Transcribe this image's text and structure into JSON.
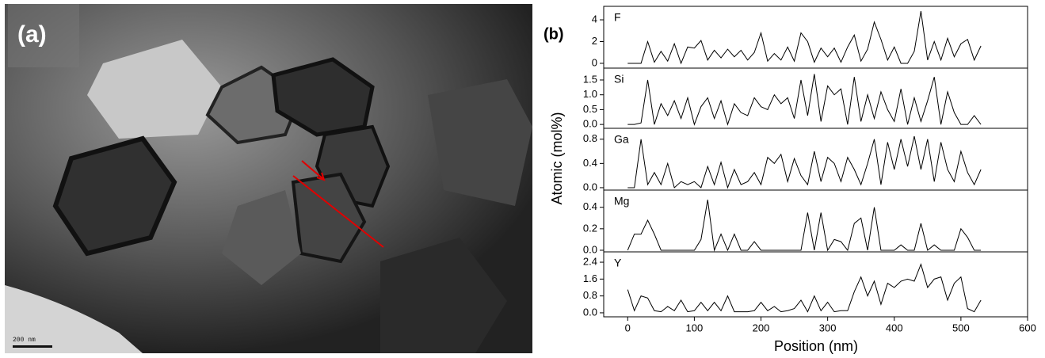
{
  "image": {
    "label": "(a)",
    "scale_bar": "200 nm"
  },
  "chart_data": {
    "type": "line",
    "panel_label": "(b)",
    "x_label": "Position (nm)",
    "y_label": "Atomic (mol%)",
    "color": "#000000",
    "xlim": [
      -36,
      600
    ],
    "xticks": [
      0,
      100,
      200,
      300,
      400,
      500,
      600
    ],
    "x": [
      0,
      10,
      20,
      30,
      40,
      50,
      60,
      70,
      80,
      90,
      100,
      110,
      120,
      130,
      140,
      150,
      160,
      170,
      180,
      190,
      200,
      210,
      220,
      230,
      240,
      250,
      260,
      270,
      280,
      290,
      300,
      310,
      320,
      330,
      340,
      350,
      360,
      370,
      380,
      390,
      400,
      410,
      420,
      430,
      440,
      450,
      460,
      470,
      480,
      490,
      500,
      510,
      520,
      530
    ],
    "series": [
      {
        "name": "F",
        "ylim": [
          -0.44,
          5.24
        ],
        "yticks": [
          0,
          2,
          4
        ],
        "values": [
          0,
          0,
          0,
          2.0,
          0.1,
          1.1,
          0.2,
          1.8,
          0,
          1.5,
          1.4,
          2.1,
          0.3,
          1.2,
          0.5,
          1.3,
          0.6,
          1.2,
          0.3,
          1.0,
          2.8,
          0.2,
          0.9,
          0.3,
          1.5,
          0.2,
          2.8,
          2.0,
          0.1,
          1.4,
          0.6,
          1.4,
          0.1,
          1.5,
          2.6,
          0.2,
          1.3,
          3.8,
          2.2,
          0.3,
          1.5,
          0,
          0,
          1.1,
          4.8,
          0.3,
          2.0,
          0.3,
          2.3,
          0.6,
          1.8,
          2.2,
          0.3,
          1.6
        ]
      },
      {
        "name": "Si",
        "ylim": [
          -0.13,
          1.9
        ],
        "yticks": [
          {
            "value": 0,
            "label": "0.0"
          },
          {
            "value": 0.5,
            "label": "0.5"
          },
          {
            "value": 1,
            "label": "1.0"
          },
          {
            "value": 1.5,
            "label": "1.5"
          }
        ],
        "values": [
          0,
          0,
          0.05,
          1.5,
          0,
          0.7,
          0.3,
          0.8,
          0.2,
          0.9,
          0,
          0.6,
          0.9,
          0.2,
          0.8,
          0,
          0.7,
          0.4,
          0.3,
          0.9,
          0.6,
          0.5,
          1.0,
          0.7,
          0.9,
          0.2,
          1.5,
          0.3,
          1.7,
          0.1,
          1.3,
          1.0,
          1.2,
          0,
          1.6,
          0.1,
          1.0,
          0.2,
          1.1,
          0.5,
          0.1,
          1.2,
          0,
          0.9,
          0.1,
          0.8,
          1.6,
          0,
          1.1,
          0.4,
          0,
          0,
          0.3,
          0
        ]
      },
      {
        "name": "Ga",
        "ylim": [
          -0.04,
          0.98
        ],
        "yticks": [
          {
            "value": 0,
            "label": "0.0"
          },
          0.4,
          0.8
        ],
        "values": [
          0,
          0,
          0.8,
          0.05,
          0.25,
          0.05,
          0.4,
          0,
          0.1,
          0.05,
          0.1,
          0,
          0.35,
          0.05,
          0.42,
          0,
          0.3,
          0.05,
          0.1,
          0.25,
          0.05,
          0.5,
          0.4,
          0.55,
          0.1,
          0.48,
          0.2,
          0.05,
          0.6,
          0.1,
          0.5,
          0.4,
          0.1,
          0.5,
          0.3,
          0.05,
          0.4,
          0.8,
          0.05,
          0.75,
          0.3,
          0.8,
          0.35,
          0.85,
          0.3,
          0.8,
          0.1,
          0.75,
          0.3,
          0.1,
          0.6,
          0.25,
          0.05,
          0.3
        ]
      },
      {
        "name": "Mg",
        "ylim": [
          -0.015,
          0.56
        ],
        "yticks": [
          {
            "value": 0,
            "label": "0.0"
          },
          0.2,
          0.4
        ],
        "values": [
          0,
          0.15,
          0.15,
          0.28,
          0.15,
          0,
          0,
          0,
          0,
          0,
          0,
          0.1,
          0.47,
          0,
          0.15,
          0,
          0.15,
          0,
          0,
          0.08,
          0,
          0,
          0,
          0,
          0,
          0,
          0,
          0.35,
          0,
          0.35,
          0,
          0.1,
          0.08,
          0,
          0.25,
          0.3,
          0,
          0.4,
          0,
          0,
          0,
          0.05,
          0,
          0,
          0.25,
          0,
          0.05,
          0,
          0,
          0,
          0.2,
          0.12,
          0,
          0
        ]
      },
      {
        "name": "Y",
        "ylim": [
          -0.19,
          2.89
        ],
        "yticks": [
          {
            "value": 0,
            "label": "0.0"
          },
          0.8,
          1.6,
          2.4
        ],
        "values": [
          1.1,
          0.1,
          0.8,
          0.7,
          0.1,
          0.05,
          0.3,
          0.1,
          0.6,
          0.05,
          0.1,
          0.5,
          0.1,
          0.5,
          0.1,
          0.8,
          0.05,
          0.05,
          0.05,
          0.1,
          0.5,
          0.1,
          0.3,
          0.05,
          0.1,
          0.2,
          0.6,
          0.05,
          0.8,
          0.1,
          0.5,
          0.05,
          0.1,
          0.1,
          1.0,
          1.7,
          0.8,
          1.5,
          0.4,
          1.4,
          1.2,
          1.5,
          1.6,
          1.5,
          2.3,
          1.2,
          1.6,
          1.7,
          0.6,
          1.4,
          1.7,
          0.2,
          0.05,
          0.6
        ]
      }
    ]
  }
}
